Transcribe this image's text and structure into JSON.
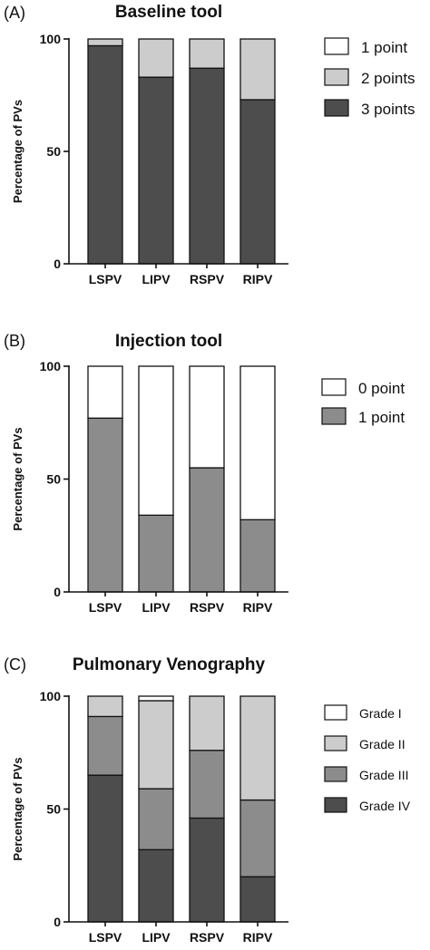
{
  "chart_data": [
    {
      "type": "bar",
      "stacked": true,
      "panel_label": "(A)",
      "title": "Baseline tool",
      "ylabel": "Percentage of PVs",
      "xlabel": "",
      "ylim": [
        0,
        100
      ],
      "yticks": [
        0,
        50,
        100
      ],
      "categories": [
        "LSPV",
        "LIPV",
        "RSPV",
        "RIPV"
      ],
      "legend_position": "right",
      "series": [
        {
          "name": "3 points",
          "color": "#4d4d4d",
          "values": [
            97,
            83,
            87,
            73
          ]
        },
        {
          "name": "2 points",
          "color": "#cccccc",
          "values": [
            3,
            17,
            13,
            27
          ]
        },
        {
          "name": "1 point",
          "color": "#ffffff",
          "values": [
            0,
            0,
            0,
            0
          ]
        }
      ],
      "legend_order": [
        "1 point",
        "2 points",
        "3 points"
      ]
    },
    {
      "type": "bar",
      "stacked": true,
      "panel_label": "(B)",
      "title": "Injection tool",
      "ylabel": "Percentage of PVs",
      "xlabel": "",
      "ylim": [
        0,
        100
      ],
      "yticks": [
        0,
        50,
        100
      ],
      "categories": [
        "LSPV",
        "LIPV",
        "RSPV",
        "RIPV"
      ],
      "legend_position": "right",
      "series": [
        {
          "name": "1 point",
          "color": "#8c8c8c",
          "values": [
            77,
            34,
            55,
            32
          ]
        },
        {
          "name": "0 point",
          "color": "#ffffff",
          "values": [
            23,
            66,
            45,
            68
          ]
        }
      ],
      "legend_order": [
        "0 point",
        "1 point"
      ]
    },
    {
      "type": "bar",
      "stacked": true,
      "panel_label": "(C)",
      "title": "Pulmonary Venography",
      "ylabel": "Percentage of PVs",
      "xlabel": "",
      "ylim": [
        0,
        100
      ],
      "yticks": [
        0,
        50,
        100
      ],
      "categories": [
        "LSPV",
        "LIPV",
        "RSPV",
        "RIPV"
      ],
      "legend_position": "right",
      "series": [
        {
          "name": "Grade IV",
          "color": "#4d4d4d",
          "values": [
            65,
            32,
            46,
            20
          ]
        },
        {
          "name": "Grade III",
          "color": "#8c8c8c",
          "values": [
            26,
            27,
            30,
            34
          ]
        },
        {
          "name": "Grade II",
          "color": "#cccccc",
          "values": [
            9,
            39,
            24,
            46
          ]
        },
        {
          "name": "Grade I",
          "color": "#ffffff",
          "values": [
            0,
            2,
            0,
            0
          ]
        }
      ],
      "legend_order": [
        "Grade I",
        "Grade II",
        "Grade III",
        "Grade IV"
      ]
    }
  ]
}
